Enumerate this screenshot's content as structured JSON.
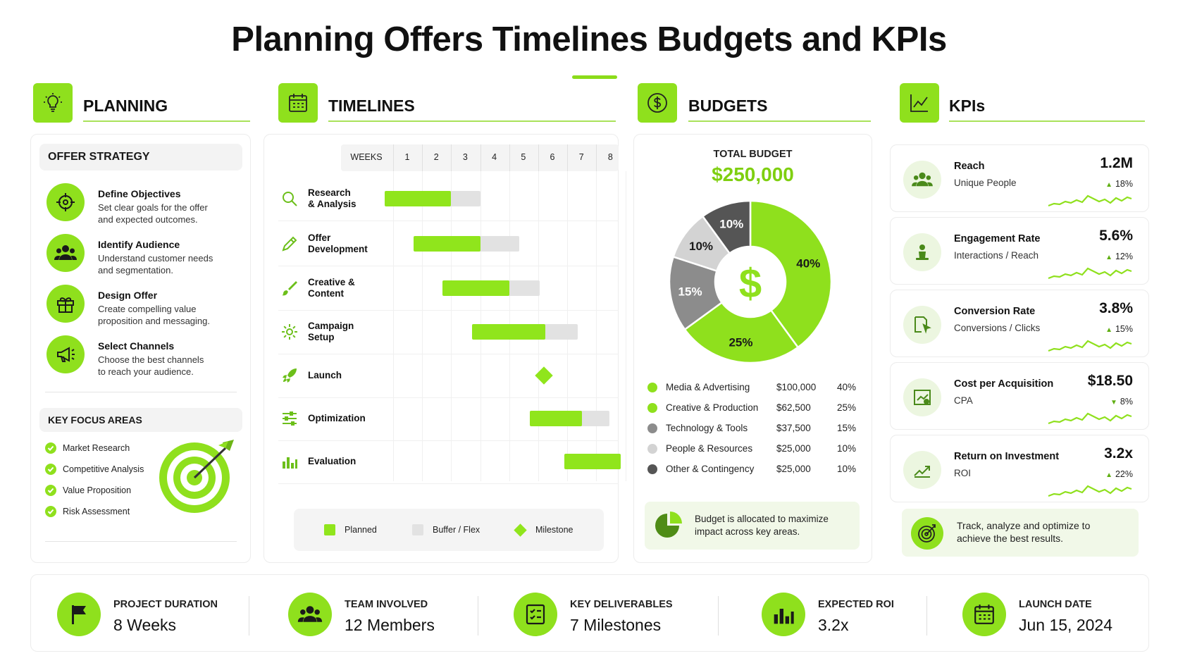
{
  "title": "Planning Offers Timelines Budgets and KPIs",
  "colors": {
    "accent": "#8fe01d",
    "accent_light": "#ecf6e0",
    "buffer": "#e2e2e2",
    "gray_dark": "#555555",
    "gray_mid": "#8c8c8c",
    "gray_light": "#d3d3d3"
  },
  "planning": {
    "title": "PLANNING",
    "icon": "lightbulb-icon",
    "offer_strategy": "OFFER STRATEGY",
    "steps": [
      {
        "title": "Define Objectives",
        "line1": "Set clear goals for the offer",
        "line2": "and expected outcomes.",
        "icon": "crosshair-icon"
      },
      {
        "title": "Identify Audience",
        "line1": "Understand customer needs",
        "line2": "and segmentation.",
        "icon": "people-icon"
      },
      {
        "title": "Design Offer",
        "line1": "Create compelling value",
        "line2": "proposition and messaging.",
        "icon": "gift-icon"
      },
      {
        "title": "Select Channels",
        "line1": "Choose the best channels",
        "line2": "to reach your audience.",
        "icon": "megaphone-icon"
      }
    ],
    "key_focus": "KEY FOCUS AREAS",
    "focus_items": [
      "Market Research",
      "Competitive Analysis",
      "Value Proposition",
      "Risk Assessment"
    ]
  },
  "timelines": {
    "title": "TIMELINES",
    "icon": "calendar-icon",
    "weeks_label": "WEEKS",
    "weeks": [
      "1",
      "2",
      "3",
      "4",
      "5",
      "6",
      "7",
      "8"
    ],
    "tasks": [
      {
        "l1": "Research",
        "l2": "& Analysis",
        "icon": "search-icon",
        "planned": [
          0,
          2
        ],
        "buffer": [
          2,
          3
        ]
      },
      {
        "l1": "Offer",
        "l2": "Development",
        "icon": "pencil-icon",
        "planned": [
          1,
          3
        ],
        "buffer": [
          3,
          4.35
        ]
      },
      {
        "l1": "Creative &",
        "l2": "Content",
        "icon": "brush-icon",
        "planned": [
          2,
          4
        ],
        "buffer": [
          4,
          5.05
        ]
      },
      {
        "l1": "Campaign",
        "l2": "Setup",
        "icon": "gear-icon",
        "planned": [
          3,
          5.25
        ],
        "buffer": [
          5.25,
          6.35
        ]
      },
      {
        "l1": "Launch",
        "l2": "",
        "icon": "rocket-icon",
        "milestone": 5.25
      },
      {
        "l1": "Optimization",
        "l2": "",
        "icon": "sliders-icon",
        "planned": [
          5,
          6.5
        ],
        "buffer": [
          6.5,
          7.45
        ]
      },
      {
        "l1": "Evaluation",
        "l2": "",
        "icon": "bar-chart-icon",
        "planned": [
          6.2,
          7.85
        ]
      }
    ],
    "legend": {
      "planned": "Planned",
      "buffer": "Buffer / Flex",
      "milestone": "Milestone"
    }
  },
  "budgets": {
    "title": "BUDGETS",
    "icon": "dollar-icon",
    "total_label": "TOTAL BUDGET",
    "total_value": "$250,000",
    "center_symbol": "$",
    "items": [
      {
        "name": "Media & Advertising",
        "amount": "$100,000",
        "pct": "40%",
        "value": 40,
        "color": "#8fe01d"
      },
      {
        "name": "Creative & Production",
        "amount": "$62,500",
        "pct": "25%",
        "value": 25,
        "color": "#8fe01d"
      },
      {
        "name": "Technology & Tools",
        "amount": "$37,500",
        "pct": "15%",
        "value": 15,
        "color": "#8c8c8c"
      },
      {
        "name": "People & Resources",
        "amount": "$25,000",
        "pct": "10%",
        "value": 10,
        "color": "#d3d3d3"
      },
      {
        "name": "Other & Contingency",
        "amount": "$25,000",
        "pct": "10%",
        "value": 10,
        "color": "#555555"
      }
    ],
    "note_line1": "Budget is allocated to maximize",
    "note_line2": "impact across key areas."
  },
  "kpis": {
    "title": "KPIs",
    "icon": "line-chart-icon",
    "items": [
      {
        "name": "Reach",
        "sub": "Unique People",
        "value": "1.2M",
        "change": "18%",
        "dir": "up",
        "icon": "users-icon"
      },
      {
        "name": "Engagement Rate",
        "sub": "Interactions / Reach",
        "value": "5.6%",
        "change": "12%",
        "dir": "up",
        "icon": "hand-icon"
      },
      {
        "name": "Conversion Rate",
        "sub": "Conversions / Clicks",
        "value": "3.8%",
        "change": "15%",
        "dir": "up",
        "icon": "cursor-icon"
      },
      {
        "name": "Cost per Acquisition",
        "sub": "CPA",
        "value": "$18.50",
        "change": "8%",
        "dir": "down",
        "icon": "cpa-icon"
      },
      {
        "name": "Return on Investment",
        "sub": "ROI",
        "value": "3.2x",
        "change": "22%",
        "dir": "up",
        "icon": "roi-icon"
      }
    ],
    "note_line1": "Track, analyze and optimize to",
    "note_line2": "achieve the best results."
  },
  "footer": [
    {
      "label": "PROJECT DURATION",
      "value": "8 Weeks",
      "icon": "flag-icon"
    },
    {
      "label": "TEAM INVOLVED",
      "value": "12 Members",
      "icon": "team-icon"
    },
    {
      "label": "KEY DELIVERABLES",
      "value": "7 Milestones",
      "icon": "checklist-icon"
    },
    {
      "label": "EXPECTED ROI",
      "value": "3.2x",
      "icon": "bar-chart-icon"
    },
    {
      "label": "LAUNCH DATE",
      "value": "Jun 15, 2024",
      "icon": "calendar-icon"
    }
  ]
}
